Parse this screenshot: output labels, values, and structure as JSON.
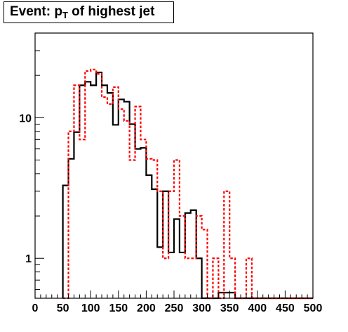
{
  "chart_data": {
    "type": "histogram-step",
    "title": "Event: p",
    "title_subscript": "T",
    "title_suffix": " of highest jet",
    "xlabel": "",
    "ylabel": "",
    "xlim": [
      0,
      500
    ],
    "ylim_log": [
      0.52,
      40
    ],
    "y_scale": "log",
    "bin_width": 10,
    "bin_starts": [
      50,
      60,
      70,
      80,
      90,
      100,
      110,
      120,
      130,
      140,
      150,
      160,
      170,
      180,
      190,
      200,
      210,
      220,
      230,
      240,
      250,
      260,
      270,
      280,
      290,
      300,
      310,
      320,
      330,
      340,
      350,
      360,
      370,
      380,
      390,
      400,
      410,
      420,
      430,
      440,
      450,
      460,
      470,
      480,
      490
    ],
    "x_ticks": [
      0,
      50,
      100,
      150,
      200,
      250,
      300,
      350,
      400,
      450,
      500
    ],
    "x_tick_labels": [
      "0",
      "50",
      "100",
      "150",
      "200",
      "250",
      "300",
      "350",
      "400",
      "450",
      "500"
    ],
    "y_ticks": [
      1,
      10
    ],
    "y_tick_labels": [
      "1",
      "10"
    ],
    "grid": false,
    "legend": "none",
    "series": [
      {
        "style": "solid",
        "color": "#000000",
        "values": [
          3.3,
          5.1,
          7.9,
          17,
          18,
          17,
          21,
          17,
          15,
          8.9,
          13.5,
          13,
          9,
          6,
          6.1,
          3.9,
          3.1,
          1.2,
          3,
          1.1,
          1.9,
          1.1,
          2.1,
          2.2,
          1.0,
          0.5,
          0.5,
          0.5,
          0.57,
          0.57,
          0.57,
          0.5,
          0.5,
          0.5,
          0.5,
          0.5,
          0.5,
          0.5,
          0.5,
          0.5,
          0.5,
          0.5,
          0.5,
          0.5,
          0.5
        ]
      },
      {
        "style": "dashed",
        "color": "#ff0000",
        "values": [
          0.5,
          8,
          17,
          7,
          21.5,
          22,
          20.5,
          14,
          12.5,
          16.5,
          11.5,
          9.5,
          5,
          12,
          7,
          5.1,
          5,
          3,
          1,
          3,
          5,
          2,
          1,
          1,
          2,
          1.6,
          0.5,
          1,
          0.5,
          3,
          1,
          0.5,
          0.5,
          1,
          0.5,
          0.5,
          0.5,
          0.5,
          0.5,
          0.5,
          0.5,
          0.5,
          0.5,
          0.5,
          0.5
        ]
      }
    ],
    "colors": {
      "frame": "#000000",
      "solid_series": "#000000",
      "dashed_series": "#ff0000"
    }
  }
}
